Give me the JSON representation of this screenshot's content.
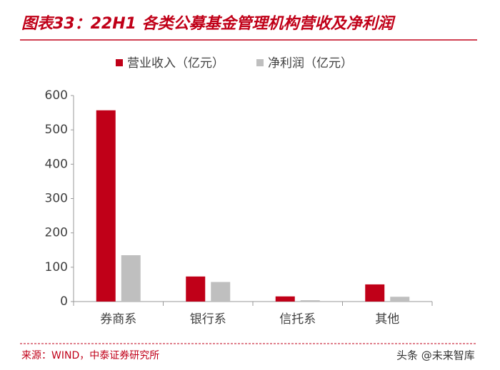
{
  "chart_data": {
    "type": "bar",
    "title": "图表33：22H1 各类公募基金管理机构营收及净利润",
    "categories": [
      "券商系",
      "银行系",
      "信托系",
      "其他"
    ],
    "series": [
      {
        "name": "营业收入（亿元）",
        "color": "#c00018",
        "values": [
          557,
          73,
          15,
          50
        ]
      },
      {
        "name": "净利润（亿元）",
        "color": "#bfbfbf",
        "values": [
          135,
          57,
          4,
          14
        ]
      }
    ],
    "ylim": [
      0,
      600
    ],
    "yticks": [
      0,
      100,
      200,
      300,
      400,
      500,
      600
    ],
    "source": "来源：WIND，中泰证券研究所",
    "watermark": "头条 @未来智库"
  }
}
